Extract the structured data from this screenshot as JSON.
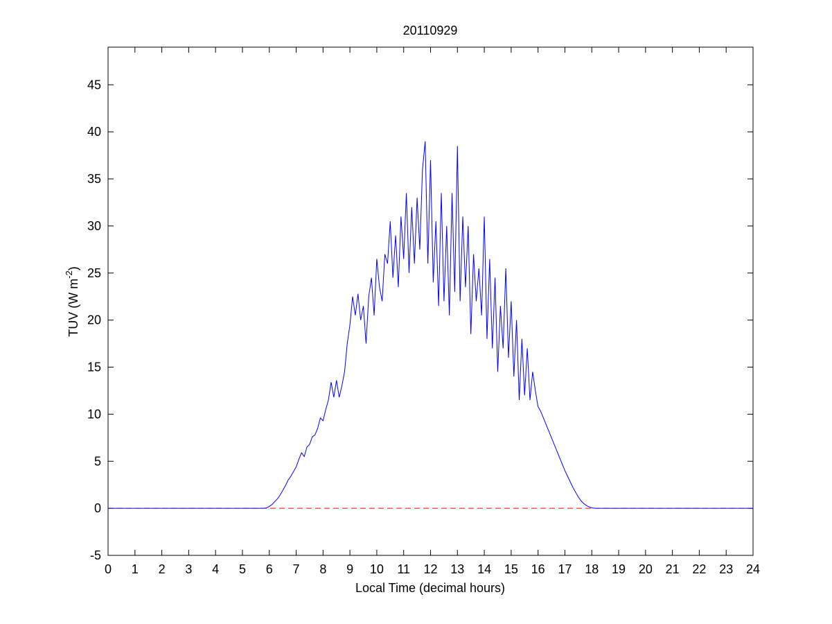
{
  "chart_data": {
    "type": "line",
    "title": "20110929",
    "xlabel": "Local Time (decimal hours)",
    "ylabel": [
      "TUV (W m",
      "-2",
      ")"
    ],
    "x": [
      0,
      5.8,
      5.9,
      6,
      6.1,
      6.2,
      6.3,
      6.4,
      6.5,
      6.6,
      6.7,
      6.8,
      6.9,
      7,
      7.1,
      7.2,
      7.3,
      7.4,
      7.5,
      7.6,
      7.7,
      7.8,
      7.9,
      8,
      8.1,
      8.2,
      8.3,
      8.4,
      8.5,
      8.6,
      8.7,
      8.8,
      8.9,
      9,
      9.1,
      9.2,
      9.3,
      9.4,
      9.5,
      9.6,
      9.7,
      9.8,
      9.9,
      10,
      10.1,
      10.2,
      10.3,
      10.4,
      10.5,
      10.6,
      10.7,
      10.8,
      10.9,
      11,
      11.1,
      11.2,
      11.3,
      11.4,
      11.5,
      11.6,
      11.7,
      11.8,
      11.9,
      12,
      12.1,
      12.2,
      12.3,
      12.4,
      12.5,
      12.6,
      12.7,
      12.8,
      12.9,
      13,
      13.1,
      13.2,
      13.3,
      13.4,
      13.5,
      13.6,
      13.7,
      13.8,
      13.9,
      14,
      14.1,
      14.2,
      14.3,
      14.4,
      14.5,
      14.6,
      14.7,
      14.8,
      14.9,
      15,
      15.1,
      15.2,
      15.3,
      15.4,
      15.5,
      15.6,
      15.7,
      15.8,
      15.9,
      16,
      16.1,
      16.2,
      16.3,
      16.4,
      16.5,
      16.6,
      16.7,
      16.8,
      16.9,
      17,
      17.1,
      17.2,
      17.3,
      17.4,
      17.5,
      17.6,
      17.7,
      17.8,
      17.9,
      18,
      18.1,
      18.2,
      24
    ],
    "series": [
      {
        "color": "#0000ff",
        "values": [
          0,
          0,
          0.05,
          0.2,
          0.4,
          0.7,
          1.0,
          1.4,
          1.9,
          2.4,
          3.0,
          3.4,
          3.9,
          4.4,
          5.2,
          5.9,
          5.5,
          6.5,
          6.8,
          7.6,
          7.8,
          8.5,
          9.6,
          9.3,
          10.5,
          11.5,
          13.4,
          11.8,
          13.6,
          11.8,
          13.0,
          14.5,
          17.5,
          19.5,
          22.5,
          20.5,
          22.8,
          20.0,
          21.5,
          17.5,
          22.5,
          24.5,
          20.5,
          26.5,
          23.5,
          22.0,
          27.0,
          26.0,
          30.5,
          24.5,
          29.0,
          23.5,
          31.0,
          26.5,
          33.5,
          25.0,
          32.0,
          26.0,
          33.0,
          27.5,
          36.0,
          39.0,
          26.0,
          37.0,
          24.0,
          30.5,
          21.5,
          33.5,
          22.0,
          30.0,
          20.5,
          33.5,
          23.0,
          38.5,
          22.0,
          31.0,
          23.5,
          30.0,
          18.5,
          27.0,
          22.0,
          25.5,
          20.5,
          31.0,
          18.0,
          26.5,
          17.0,
          24.5,
          14.5,
          21.5,
          17.0,
          25.5,
          16.0,
          22.0,
          14.0,
          20.0,
          11.5,
          18.0,
          12.0,
          17.0,
          11.5,
          14.5,
          12.5,
          10.8,
          10.3,
          9.6,
          8.9,
          8.2,
          7.5,
          6.8,
          6.1,
          5.4,
          4.7,
          4.0,
          3.4,
          2.8,
          2.2,
          1.7,
          1.2,
          0.8,
          0.5,
          0.3,
          0.15,
          0.05,
          0.02,
          0,
          0
        ]
      }
    ],
    "reference_line": {
      "value": 0,
      "color": "#ff0000",
      "style": "dashed"
    },
    "xlim": [
      0,
      24
    ],
    "xticks": [
      0,
      1,
      2,
      3,
      4,
      5,
      6,
      7,
      8,
      9,
      10,
      11,
      12,
      13,
      14,
      15,
      16,
      17,
      18,
      19,
      20,
      21,
      22,
      23,
      24
    ],
    "ylim": [
      -5,
      49
    ],
    "yticks": [
      -5,
      0,
      5,
      10,
      15,
      20,
      25,
      30,
      35,
      40,
      45
    ],
    "grid": false
  }
}
